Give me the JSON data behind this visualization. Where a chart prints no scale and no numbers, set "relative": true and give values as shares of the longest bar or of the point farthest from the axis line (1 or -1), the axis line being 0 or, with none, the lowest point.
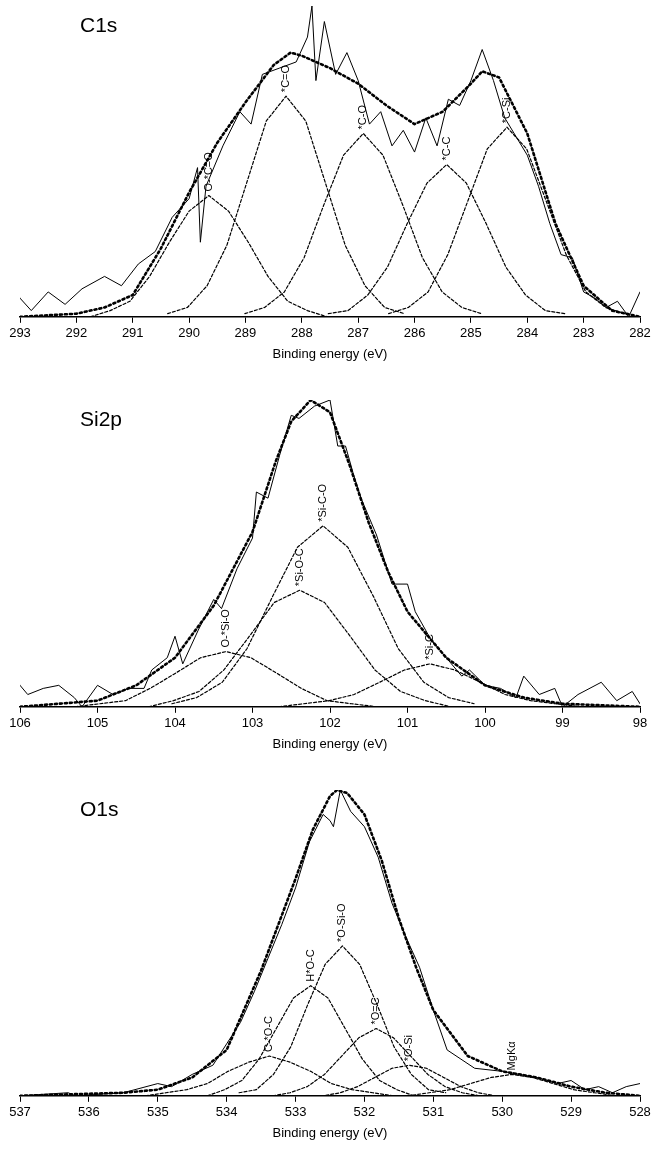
{
  "chart_data": [
    {
      "type": "line",
      "title": "C1s",
      "xlabel": "Binding energy (eV)",
      "relative": true,
      "xlim": [
        293,
        282
      ],
      "xticks": [
        293,
        292,
        291,
        290,
        289,
        288,
        287,
        286,
        285,
        284,
        283,
        282
      ],
      "grid": false,
      "legend": false,
      "marker": "none",
      "series": [
        {
          "color": "#000000",
          "line_style": "solid",
          "x": [
            293,
            292.8,
            292.5,
            292.2,
            291.9,
            291.5,
            291.2,
            290.9,
            290.6,
            290.3,
            290.0,
            289.85,
            289.8,
            289.7,
            289.4,
            289.1,
            288.9,
            288.7,
            288.4,
            288.1,
            287.9,
            287.82,
            287.75,
            287.6,
            287.4,
            287.2,
            287.0,
            286.8,
            286.6,
            286.4,
            286.2,
            286.0,
            285.8,
            285.6,
            285.4,
            285.2,
            285.0,
            284.8,
            284.6,
            284.4,
            284.2,
            284.0,
            283.8,
            283.6,
            283.4,
            283.2,
            283.0,
            282.8,
            282.6,
            282.4,
            282.2,
            282.0
          ],
          "values": [
            0.06,
            0.02,
            0.08,
            0.04,
            0.09,
            0.13,
            0.1,
            0.17,
            0.21,
            0.32,
            0.38,
            0.48,
            0.24,
            0.42,
            0.55,
            0.66,
            0.62,
            0.78,
            0.8,
            0.82,
            0.9,
            1.0,
            0.76,
            0.95,
            0.78,
            0.85,
            0.76,
            0.62,
            0.66,
            0.55,
            0.6,
            0.53,
            0.64,
            0.55,
            0.7,
            0.68,
            0.76,
            0.86,
            0.76,
            0.64,
            0.58,
            0.52,
            0.42,
            0.3,
            0.2,
            0.19,
            0.08,
            0.06,
            0.03,
            0.05,
            0.0,
            0.08
          ]
        },
        {
          "color": "#000000",
          "line_style": "dotted",
          "x": [
            293,
            292,
            291.5,
            291,
            290.5,
            290,
            289.5,
            289,
            288.5,
            288.2,
            288,
            287.5,
            287,
            286.5,
            286,
            285.5,
            285,
            284.8,
            284.5,
            284,
            283.5,
            283,
            282.5,
            282
          ],
          "values": [
            0,
            0.01,
            0.03,
            0.07,
            0.22,
            0.4,
            0.56,
            0.69,
            0.81,
            0.85,
            0.84,
            0.8,
            0.75,
            0.68,
            0.62,
            0.66,
            0.75,
            0.79,
            0.77,
            0.59,
            0.3,
            0.1,
            0.02,
            0
          ]
        },
        {
          "color": "#000000",
          "line_style": "dashed",
          "x": [
            291.75,
            291.4,
            291.05,
            290.7,
            290.35,
            290.0,
            289.65,
            289.3,
            288.95,
            288.6,
            288.25,
            287.9,
            287.55
          ],
          "values": [
            0,
            0.02,
            0.05,
            0.13,
            0.24,
            0.34,
            0.39,
            0.34,
            0.24,
            0.13,
            0.05,
            0.02,
            0
          ]
        },
        {
          "color": "#000000",
          "line_style": "dashed",
          "x": [
            290.38,
            290.03,
            289.68,
            289.33,
            288.98,
            288.63,
            288.28,
            287.93,
            287.58,
            287.23,
            286.88,
            286.53,
            286.18
          ],
          "values": [
            0.01,
            0.03,
            0.1,
            0.23,
            0.43,
            0.63,
            0.71,
            0.63,
            0.43,
            0.23,
            0.1,
            0.03,
            0.01
          ]
        },
        {
          "color": "#000000",
          "line_style": "dashed",
          "x": [
            289.01,
            288.66,
            288.31,
            287.96,
            287.61,
            287.26,
            286.91,
            286.56,
            286.21,
            285.86,
            285.51,
            285.16,
            284.81
          ],
          "values": [
            0.01,
            0.03,
            0.08,
            0.19,
            0.36,
            0.52,
            0.59,
            0.52,
            0.36,
            0.19,
            0.08,
            0.03,
            0.01
          ]
        },
        {
          "color": "#000000",
          "line_style": "dashed",
          "x": [
            287.53,
            287.18,
            286.83,
            286.48,
            286.13,
            285.78,
            285.43,
            285.08,
            284.73,
            284.38,
            284.03,
            283.68,
            283.33
          ],
          "values": [
            0.01,
            0.02,
            0.07,
            0.16,
            0.3,
            0.43,
            0.49,
            0.43,
            0.3,
            0.16,
            0.07,
            0.02,
            0.01
          ]
        },
        {
          "color": "#000000",
          "line_style": "dashed",
          "x": [
            286.46,
            286.11,
            285.76,
            285.41,
            285.06,
            284.71,
            284.36,
            284.01,
            283.66,
            283.31,
            282.96,
            282.61,
            282.26
          ],
          "values": [
            0.01,
            0.03,
            0.08,
            0.2,
            0.37,
            0.54,
            0.61,
            0.54,
            0.37,
            0.2,
            0.08,
            0.03,
            0.01
          ]
        }
      ],
      "annotations": [
        "O-*C=O",
        "*C=O",
        "*C-O",
        "*C-C",
        "*C-Si"
      ]
    },
    {
      "type": "line",
      "title": "Si2p",
      "xlabel": "Binding energy (eV)",
      "relative": true,
      "xlim": [
        106,
        98
      ],
      "xticks": [
        106,
        105,
        104,
        103,
        102,
        101,
        100,
        99,
        98
      ],
      "grid": false,
      "legend": false,
      "marker": "none",
      "series": [
        {
          "color": "#000000",
          "line_style": "solid",
          "x": [
            106,
            105.9,
            105.7,
            105.5,
            105.3,
            105.2,
            105.0,
            104.8,
            104.6,
            104.4,
            104.3,
            104.1,
            104.0,
            103.9,
            103.7,
            103.5,
            103.4,
            103.2,
            103.0,
            102.95,
            102.8,
            102.65,
            102.5,
            102.4,
            102.2,
            102.0,
            101.9,
            101.8,
            101.7,
            101.6,
            101.4,
            101.2,
            101.0,
            100.9,
            100.7,
            100.5,
            100.3,
            100.2,
            100.0,
            99.8,
            99.6,
            99.5,
            99.3,
            99.1,
            99.0,
            98.8,
            98.5,
            98.3,
            98.1,
            98.0
          ],
          "values": [
            0.07,
            0.04,
            0.06,
            0.07,
            0.03,
            0.0,
            0.07,
            0.04,
            0.06,
            0.06,
            0.12,
            0.16,
            0.23,
            0.14,
            0.25,
            0.35,
            0.32,
            0.45,
            0.55,
            0.7,
            0.68,
            0.82,
            0.95,
            0.94,
            0.98,
            1.0,
            0.85,
            0.85,
            0.76,
            0.68,
            0.56,
            0.4,
            0.4,
            0.31,
            0.22,
            0.16,
            0.1,
            0.12,
            0.07,
            0.06,
            0.03,
            0.1,
            0.04,
            0.06,
            0.0,
            0.04,
            0.08,
            0.02,
            0.05,
            0.01
          ]
        },
        {
          "color": "#000000",
          "line_style": "dotted",
          "x": [
            106,
            105,
            104.5,
            104,
            103.5,
            103,
            102.7,
            102.5,
            102.25,
            102,
            101.75,
            101.5,
            101.25,
            101,
            100.5,
            100,
            99.5,
            99,
            98
          ],
          "values": [
            0,
            0.02,
            0.07,
            0.16,
            0.33,
            0.57,
            0.8,
            0.93,
            1.0,
            0.96,
            0.79,
            0.6,
            0.44,
            0.31,
            0.16,
            0.07,
            0.03,
            0.01,
            0
          ]
        },
        {
          "color": "#000000",
          "line_style": "dashed",
          "x": [
            105.29,
            104.97,
            104.64,
            104.32,
            103.99,
            103.67,
            103.34,
            103.02,
            102.69,
            102.37,
            102.04,
            101.72,
            101.39
          ],
          "values": [
            0,
            0.01,
            0.02,
            0.06,
            0.11,
            0.16,
            0.18,
            0.16,
            0.11,
            0.06,
            0.02,
            0.01,
            0
          ]
        },
        {
          "color": "#000000",
          "line_style": "dashed",
          "x": [
            104.34,
            104.02,
            103.69,
            103.37,
            103.04,
            102.72,
            102.39,
            102.07,
            101.74,
            101.42,
            101.09,
            100.77,
            100.44
          ],
          "values": [
            0,
            0.02,
            0.05,
            0.12,
            0.23,
            0.34,
            0.38,
            0.34,
            0.23,
            0.12,
            0.05,
            0.02,
            0
          ]
        },
        {
          "color": "#000000",
          "line_style": "dashed",
          "x": [
            104.04,
            103.72,
            103.39,
            103.07,
            102.74,
            102.42,
            102.09,
            101.77,
            101.44,
            101.12,
            100.79,
            100.47,
            100.14
          ],
          "values": [
            0.01,
            0.03,
            0.08,
            0.19,
            0.36,
            0.52,
            0.59,
            0.52,
            0.36,
            0.19,
            0.08,
            0.03,
            0.01
          ]
        },
        {
          "color": "#000000",
          "line_style": "dashed",
          "x": [
            102.66,
            102.34,
            102.01,
            101.69,
            101.36,
            101.04,
            100.71,
            100.39,
            100.06,
            99.74,
            99.41,
            99.09,
            98.76
          ],
          "values": [
            0,
            0.01,
            0.02,
            0.04,
            0.08,
            0.12,
            0.14,
            0.12,
            0.08,
            0.04,
            0.02,
            0.01,
            0
          ]
        }
      ],
      "annotations": [
        "O-*Si-O",
        "*Si-O-C",
        "*Si-C-O",
        "*Si-C"
      ]
    },
    {
      "type": "line",
      "title": "O1s",
      "xlabel": "Binding energy (eV)",
      "relative": true,
      "xlim": [
        537,
        528
      ],
      "xticks": [
        537,
        536,
        535,
        534,
        533,
        532,
        531,
        530,
        529,
        528
      ],
      "grid": false,
      "legend": false,
      "marker": "none",
      "series": [
        {
          "color": "#000000",
          "line_style": "solid",
          "x": [
            537,
            536.3,
            536.2,
            535.5,
            535.0,
            534.8,
            534.5,
            534.2,
            534.0,
            533.8,
            533.6,
            533.4,
            533.2,
            533.0,
            532.8,
            532.6,
            532.5,
            532.45,
            532.35,
            532.2,
            532.0,
            531.8,
            531.6,
            531.4,
            531.2,
            531.0,
            530.8,
            530.6,
            530.4,
            530.0,
            529.5,
            529.2,
            529.0,
            528.8,
            528.6,
            528.4,
            528.2,
            528.0
          ],
          "values": [
            0,
            0.01,
            0.0,
            0.01,
            0.04,
            0.03,
            0.07,
            0.1,
            0.17,
            0.24,
            0.34,
            0.45,
            0.56,
            0.68,
            0.83,
            0.92,
            0.9,
            0.88,
            1.0,
            0.93,
            0.88,
            0.78,
            0.63,
            0.52,
            0.42,
            0.28,
            0.15,
            0.12,
            0.09,
            0.08,
            0.06,
            0.04,
            0.05,
            0.02,
            0.03,
            0.01,
            0.03,
            0.04
          ]
        },
        {
          "color": "#000000",
          "line_style": "dotted",
          "x": [
            537,
            535.5,
            535,
            534.5,
            534,
            533.5,
            533,
            532.75,
            532.5,
            532.4,
            532.25,
            532,
            531.75,
            531.5,
            531.25,
            531,
            530.5,
            530,
            529.5,
            529,
            528.5,
            528
          ],
          "values": [
            0,
            0.01,
            0.02,
            0.06,
            0.15,
            0.41,
            0.71,
            0.87,
            0.98,
            1.0,
            0.99,
            0.92,
            0.77,
            0.58,
            0.42,
            0.28,
            0.13,
            0.08,
            0.06,
            0.03,
            0.01,
            0
          ]
        },
        {
          "color": "#000000",
          "line_style": "dashed",
          "x": [
            535.18,
            534.88,
            534.58,
            534.28,
            533.98,
            533.68,
            533.38,
            533.08,
            532.78,
            532.48,
            532.18,
            531.88,
            531.58
          ],
          "values": [
            0,
            0.01,
            0.02,
            0.04,
            0.08,
            0.11,
            0.13,
            0.11,
            0.08,
            0.04,
            0.02,
            0.01,
            0
          ]
        },
        {
          "color": "#000000",
          "line_style": "dashed",
          "x": [
            534.28,
            534.03,
            533.78,
            533.53,
            533.28,
            533.03,
            532.78,
            532.53,
            532.28,
            532.03,
            531.78,
            531.53,
            531.28
          ],
          "values": [
            0,
            0.02,
            0.05,
            0.12,
            0.22,
            0.32,
            0.36,
            0.32,
            0.22,
            0.12,
            0.05,
            0.02,
            0
          ]
        },
        {
          "color": "#000000",
          "line_style": "dashed",
          "x": [
            533.82,
            533.57,
            533.32,
            533.07,
            532.82,
            532.57,
            532.32,
            532.07,
            531.82,
            531.57,
            531.32,
            531.07,
            530.82
          ],
          "values": [
            0.01,
            0.02,
            0.07,
            0.16,
            0.3,
            0.43,
            0.49,
            0.43,
            0.3,
            0.16,
            0.07,
            0.02,
            0.01
          ]
        },
        {
          "color": "#000000",
          "line_style": "dashed",
          "x": [
            533.33,
            533.08,
            532.83,
            532.58,
            532.33,
            532.08,
            531.83,
            531.58,
            531.33,
            531.08,
            530.83,
            530.58,
            530.33
          ],
          "values": [
            0,
            0.01,
            0.03,
            0.07,
            0.13,
            0.19,
            0.22,
            0.19,
            0.13,
            0.07,
            0.03,
            0.01,
            0
          ]
        },
        {
          "color": "#000000",
          "line_style": "dashed",
          "x": [
            532.85,
            532.6,
            532.35,
            532.1,
            531.85,
            531.6,
            531.35,
            531.1,
            530.85,
            530.6,
            530.35,
            530.1,
            529.85
          ],
          "values": [
            0,
            0.0,
            0.01,
            0.03,
            0.06,
            0.09,
            0.1,
            0.09,
            0.06,
            0.03,
            0.01,
            0.0,
            0
          ]
        },
        {
          "color": "#000000",
          "line_style": "dashed",
          "x": [
            531.66,
            531.36,
            531.06,
            530.76,
            530.46,
            530.16,
            529.86,
            529.56,
            529.26,
            528.96,
            528.66,
            528.36,
            528.06
          ],
          "values": [
            0,
            0.0,
            0.01,
            0.02,
            0.04,
            0.06,
            0.07,
            0.06,
            0.04,
            0.02,
            0.01,
            0.0,
            0
          ]
        }
      ],
      "annotations": [
        "C-*O-C",
        "H*O-C",
        "*O-Si-O",
        "*O=C",
        "*O-Si",
        "MgKα"
      ]
    }
  ]
}
